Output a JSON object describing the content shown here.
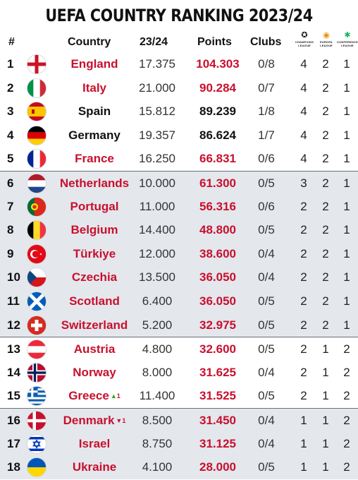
{
  "title": "UEFA COUNTRY RANKING 2023/24",
  "headers": {
    "rank": "#",
    "country": "Country",
    "season": "23/24",
    "points": "Points",
    "clubs": "Clubs",
    "competitions": [
      {
        "icon": "champions-league-icon",
        "label": "CHAMPIONS LEAGUE"
      },
      {
        "icon": "europa-league-icon",
        "label": "EUROPA LEAGUE"
      },
      {
        "icon": "conference-league-icon",
        "label": "CONFERENCE LEAGUE"
      }
    ]
  },
  "colors": {
    "highlight_red": "#c8102e",
    "alt_row": "#e4e7ec",
    "move_up": "#2ca02c",
    "move_down": "#c8102e"
  },
  "rows": [
    {
      "rank": "1",
      "country": "England",
      "flag": "england-flag",
      "season": "17.375",
      "points": "104.303",
      "clubs": "0/8",
      "cl": "4",
      "el": "2",
      "ecl": "1",
      "highlight": true,
      "move": null
    },
    {
      "rank": "2",
      "country": "Italy",
      "flag": "italy-flag",
      "season": "21.000",
      "points": "90.284",
      "clubs": "0/7",
      "cl": "4",
      "el": "2",
      "ecl": "1",
      "highlight": true,
      "move": null
    },
    {
      "rank": "3",
      "country": "Spain",
      "flag": "spain-flag",
      "season": "15.812",
      "points": "89.239",
      "clubs": "1/8",
      "cl": "4",
      "el": "2",
      "ecl": "1",
      "highlight": false,
      "move": null
    },
    {
      "rank": "4",
      "country": "Germany",
      "flag": "germany-flag",
      "season": "19.357",
      "points": "86.624",
      "clubs": "1/7",
      "cl": "4",
      "el": "2",
      "ecl": "1",
      "highlight": false,
      "move": null
    },
    {
      "rank": "5",
      "country": "France",
      "flag": "france-flag",
      "season": "16.250",
      "points": "66.831",
      "clubs": "0/6",
      "cl": "4",
      "el": "2",
      "ecl": "1",
      "highlight": true,
      "move": null
    },
    {
      "rank": "6",
      "country": "Netherlands",
      "flag": "netherlands-flag",
      "season": "10.000",
      "points": "61.300",
      "clubs": "0/5",
      "cl": "3",
      "el": "2",
      "ecl": "1",
      "highlight": true,
      "move": null
    },
    {
      "rank": "7",
      "country": "Portugal",
      "flag": "portugal-flag",
      "season": "11.000",
      "points": "56.316",
      "clubs": "0/6",
      "cl": "2",
      "el": "2",
      "ecl": "1",
      "highlight": true,
      "move": null
    },
    {
      "rank": "8",
      "country": "Belgium",
      "flag": "belgium-flag",
      "season": "14.400",
      "points": "48.800",
      "clubs": "0/5",
      "cl": "2",
      "el": "2",
      "ecl": "1",
      "highlight": true,
      "move": null
    },
    {
      "rank": "9",
      "country": "Türkiye",
      "flag": "turkiye-flag",
      "season": "12.000",
      "points": "38.600",
      "clubs": "0/4",
      "cl": "2",
      "el": "2",
      "ecl": "1",
      "highlight": true,
      "move": null
    },
    {
      "rank": "10",
      "country": "Czechia",
      "flag": "czechia-flag",
      "season": "13.500",
      "points": "36.050",
      "clubs": "0/4",
      "cl": "2",
      "el": "2",
      "ecl": "1",
      "highlight": true,
      "move": null
    },
    {
      "rank": "11",
      "country": "Scotland",
      "flag": "scotland-flag",
      "season": "6.400",
      "points": "36.050",
      "clubs": "0/5",
      "cl": "2",
      "el": "2",
      "ecl": "1",
      "highlight": true,
      "move": null
    },
    {
      "rank": "12",
      "country": "Switzerland",
      "flag": "switzerland-flag",
      "season": "5.200",
      "points": "32.975",
      "clubs": "0/5",
      "cl": "2",
      "el": "2",
      "ecl": "1",
      "highlight": true,
      "move": null
    },
    {
      "rank": "13",
      "country": "Austria",
      "flag": "austria-flag",
      "season": "4.800",
      "points": "32.600",
      "clubs": "0/5",
      "cl": "2",
      "el": "1",
      "ecl": "2",
      "highlight": true,
      "move": null
    },
    {
      "rank": "14",
      "country": "Norway",
      "flag": "norway-flag",
      "season": "8.000",
      "points": "31.625",
      "clubs": "0/4",
      "cl": "2",
      "el": "1",
      "ecl": "2",
      "highlight": true,
      "move": null
    },
    {
      "rank": "15",
      "country": "Greece",
      "flag": "greece-flag",
      "season": "11.400",
      "points": "31.525",
      "clubs": "0/5",
      "cl": "2",
      "el": "1",
      "ecl": "2",
      "highlight": true,
      "move": {
        "dir": "up",
        "arrow": "▲",
        "amount": "1"
      }
    },
    {
      "rank": "16",
      "country": "Denmark",
      "flag": "denmark-flag",
      "season": "8.500",
      "points": "31.450",
      "clubs": "0/4",
      "cl": "1",
      "el": "1",
      "ecl": "2",
      "highlight": true,
      "move": {
        "dir": "down",
        "arrow": "▼",
        "amount": "1"
      }
    },
    {
      "rank": "17",
      "country": "Israel",
      "flag": "israel-flag",
      "season": "8.750",
      "points": "31.125",
      "clubs": "0/4",
      "cl": "1",
      "el": "1",
      "ecl": "2",
      "highlight": true,
      "move": null
    },
    {
      "rank": "18",
      "country": "Ukraine",
      "flag": "ukraine-flag",
      "season": "4.100",
      "points": "28.000",
      "clubs": "0/5",
      "cl": "1",
      "el": "1",
      "ecl": "2",
      "highlight": true,
      "move": null
    }
  ]
}
